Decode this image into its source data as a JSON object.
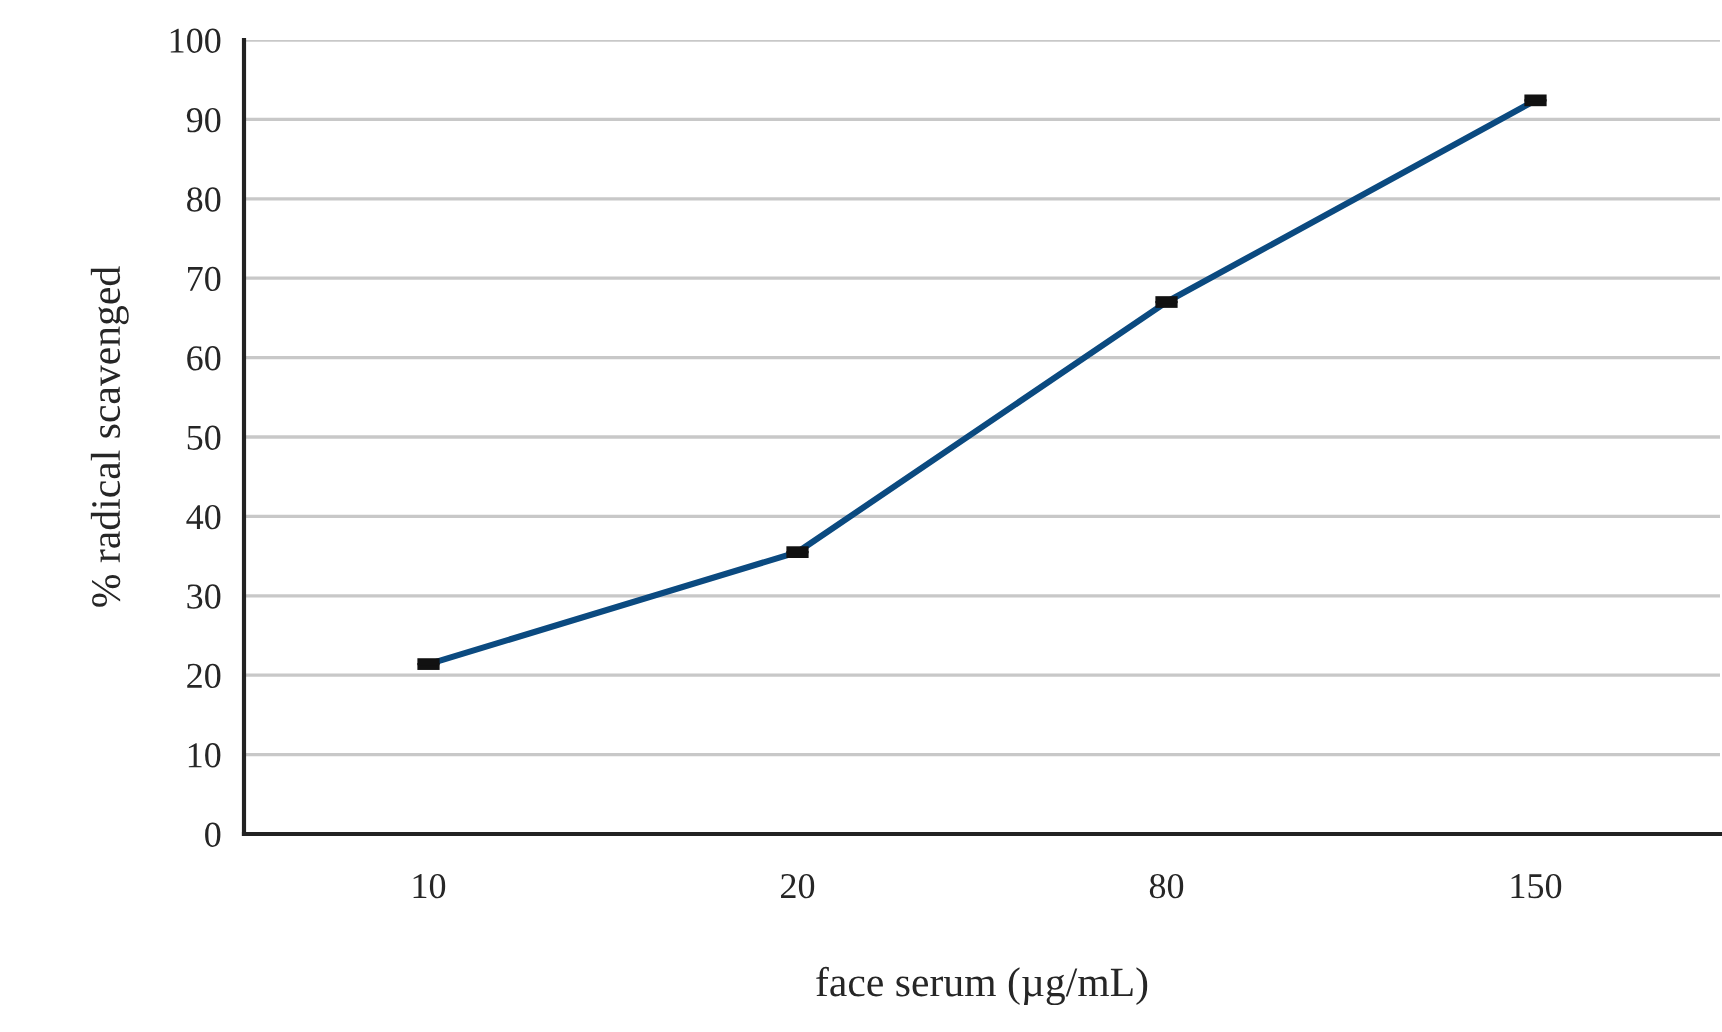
{
  "chart_data": {
    "type": "line",
    "xlabel": "face serum (µg/mL)",
    "ylabel": "% radical scavenged",
    "categories": [
      "10",
      "20",
      "80",
      "150"
    ],
    "series": [
      {
        "color": "#0b4a80",
        "values": [
          21.4,
          35.5,
          67.0,
          92.4
        ],
        "errors": [
          0.3,
          0.3,
          0.3,
          0.3
        ]
      }
    ],
    "ylim": [
      0,
      100
    ],
    "yticks": [
      0,
      10,
      20,
      30,
      40,
      50,
      60,
      70,
      80,
      90,
      100
    ],
    "grid": "y",
    "line_style": "solid"
  }
}
